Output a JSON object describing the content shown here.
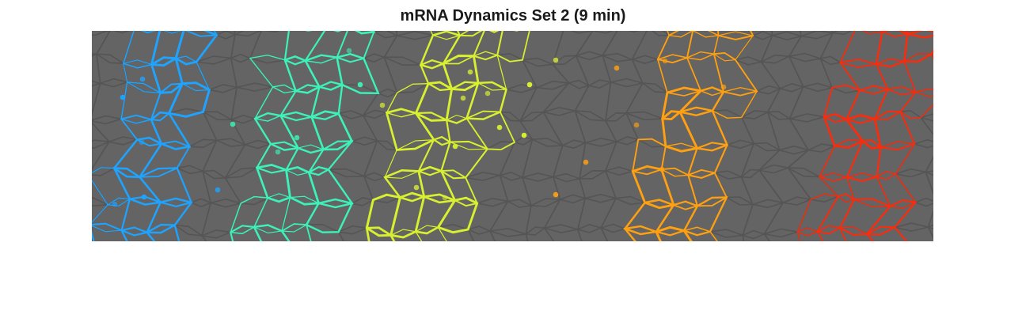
{
  "figure": {
    "title": "mRNA Dynamics Set 2 (9 min)"
  },
  "image": {
    "description_colors": {
      "background": "#646464",
      "tissue_mesh": "#565656",
      "stripes": [
        "#1ea3ff",
        "#3cf2b8",
        "#d8f030",
        "#ffa010",
        "#ff2a0a"
      ]
    },
    "stripe_count": 5
  }
}
